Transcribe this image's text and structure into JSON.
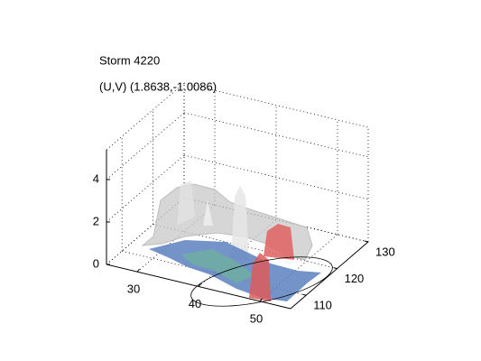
{
  "chart_data": {
    "type": "surface3d",
    "title": "Storm 4220",
    "subtitle": "(U,V) (1.8638,-1.0086)",
    "xlim": [
      25,
      55
    ],
    "xticks": [
      30,
      40,
      50
    ],
    "ylim": [
      105,
      130
    ],
    "yticks": [
      110,
      120,
      130
    ],
    "zlim": [
      0,
      5.4
    ],
    "zticks": [
      0,
      2,
      4
    ],
    "grid": true
  }
}
